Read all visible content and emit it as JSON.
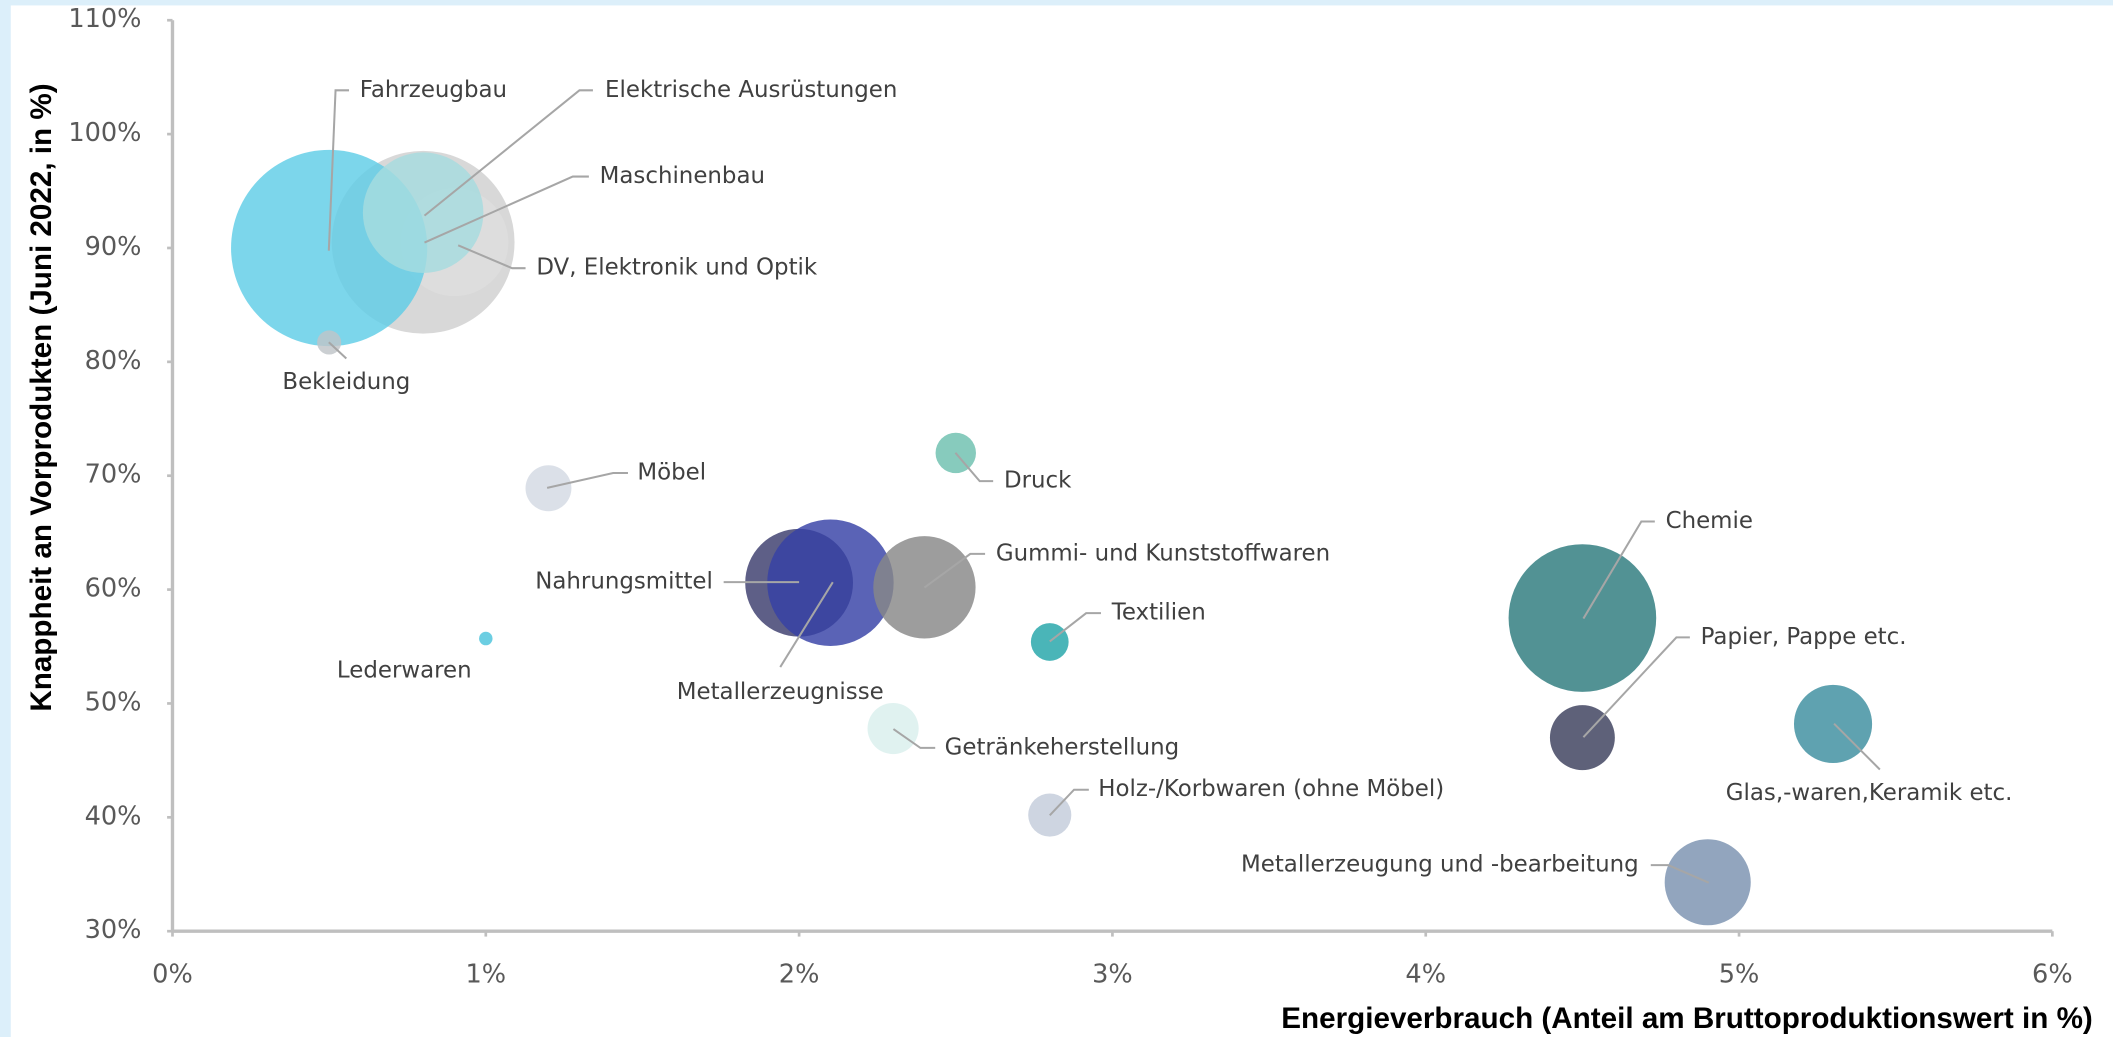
{
  "chart_data": {
    "type": "bubble",
    "xlabel": "Energieverbrauch (Anteil am Bruttoproduktionswert in %)",
    "ylabel": "Knappheit an Vorprodukten (Juni 2022, in %)",
    "xlim": [
      0,
      6
    ],
    "xticks": [
      {
        "value": 0,
        "label": "0%"
      },
      {
        "value": 1,
        "label": "1%"
      },
      {
        "value": 2,
        "label": "2%"
      },
      {
        "value": 3,
        "label": "3%"
      },
      {
        "value": 4,
        "label": "4%"
      },
      {
        "value": 5,
        "label": "5%"
      },
      {
        "value": 6,
        "label": "6%"
      }
    ],
    "ylim": [
      30,
      110
    ],
    "yticks": [
      {
        "value": 30,
        "label": "30%"
      },
      {
        "value": 40,
        "label": "40%"
      },
      {
        "value": 50,
        "label": "50%"
      },
      {
        "value": 60,
        "label": "60%"
      },
      {
        "value": 70,
        "label": "70%"
      },
      {
        "value": 80,
        "label": "80%"
      },
      {
        "value": 90,
        "label": "90%"
      },
      {
        "value": 100,
        "label": "100%"
      },
      {
        "value": 110,
        "label": "110%"
      }
    ],
    "points": [
      {
        "name": "Maschinenbau",
        "x": 0.8,
        "y": 90.5,
        "size": 46,
        "color": "#cfcfcf"
      },
      {
        "name": "DV, Elektronik und Optik",
        "x": 0.9,
        "y": 90.5,
        "size": 16,
        "color": "#dedede"
      },
      {
        "name": "Fahrzeugbau",
        "x": 0.5,
        "y": 90,
        "size": 53,
        "color": "#5fcde6"
      },
      {
        "name": "Elektrische Ausrüstungen",
        "x": 0.8,
        "y": 93.1,
        "size": 20,
        "color": "#a6dcdf"
      },
      {
        "name": "Bekleidung",
        "x": 0.5,
        "y": 81.7,
        "size": 0.8,
        "color": "#bfc4c8"
      },
      {
        "name": "Möbel",
        "x": 1.2,
        "y": 68.9,
        "size": 2.9,
        "color": "#d3d9e3"
      },
      {
        "name": "Lederwaren",
        "x": 1.0,
        "y": 55.7,
        "size": 0.25,
        "color": "#4cc3dc"
      },
      {
        "name": "Nahrungsmittel",
        "x": 2.0,
        "y": 60.6,
        "size": 16,
        "color": "#3a3c6c"
      },
      {
        "name": "Metallerzeugnisse",
        "x": 2.1,
        "y": 60.6,
        "size": 22,
        "color": "#3641a6"
      },
      {
        "name": "Gummi- und Kunststoffwaren",
        "x": 2.4,
        "y": 60.2,
        "size": 14.4,
        "color": "#888888"
      },
      {
        "name": "Druck",
        "x": 2.5,
        "y": 72,
        "size": 2.25,
        "color": "#6cbfae"
      },
      {
        "name": "Textilien",
        "x": 2.8,
        "y": 55.4,
        "size": 1.96,
        "color": "#22a5a8"
      },
      {
        "name": "Getränkeherstellung",
        "x": 2.3,
        "y": 47.8,
        "size": 3.6,
        "color": "#d9efed"
      },
      {
        "name": "Holz-/Korbwaren (ohne Möbel)",
        "x": 2.8,
        "y": 40.2,
        "size": 2.56,
        "color": "#c3ccdb"
      },
      {
        "name": "Chemie",
        "x": 4.5,
        "y": 57.5,
        "size": 30,
        "color": "#2c7a7c"
      },
      {
        "name": "Papier, Pappe etc.",
        "x": 4.5,
        "y": 47,
        "size": 5.8,
        "color": "#3b3e5c"
      },
      {
        "name": "Glas,-waren,Keramik etc.",
        "x": 5.3,
        "y": 48.2,
        "size": 8.4,
        "color": "#3c8e9f"
      },
      {
        "name": "Metallerzeugung und -bearbeitung",
        "x": 4.9,
        "y": 34.3,
        "size": 10.2,
        "color": "#7a91b0"
      }
    ]
  }
}
